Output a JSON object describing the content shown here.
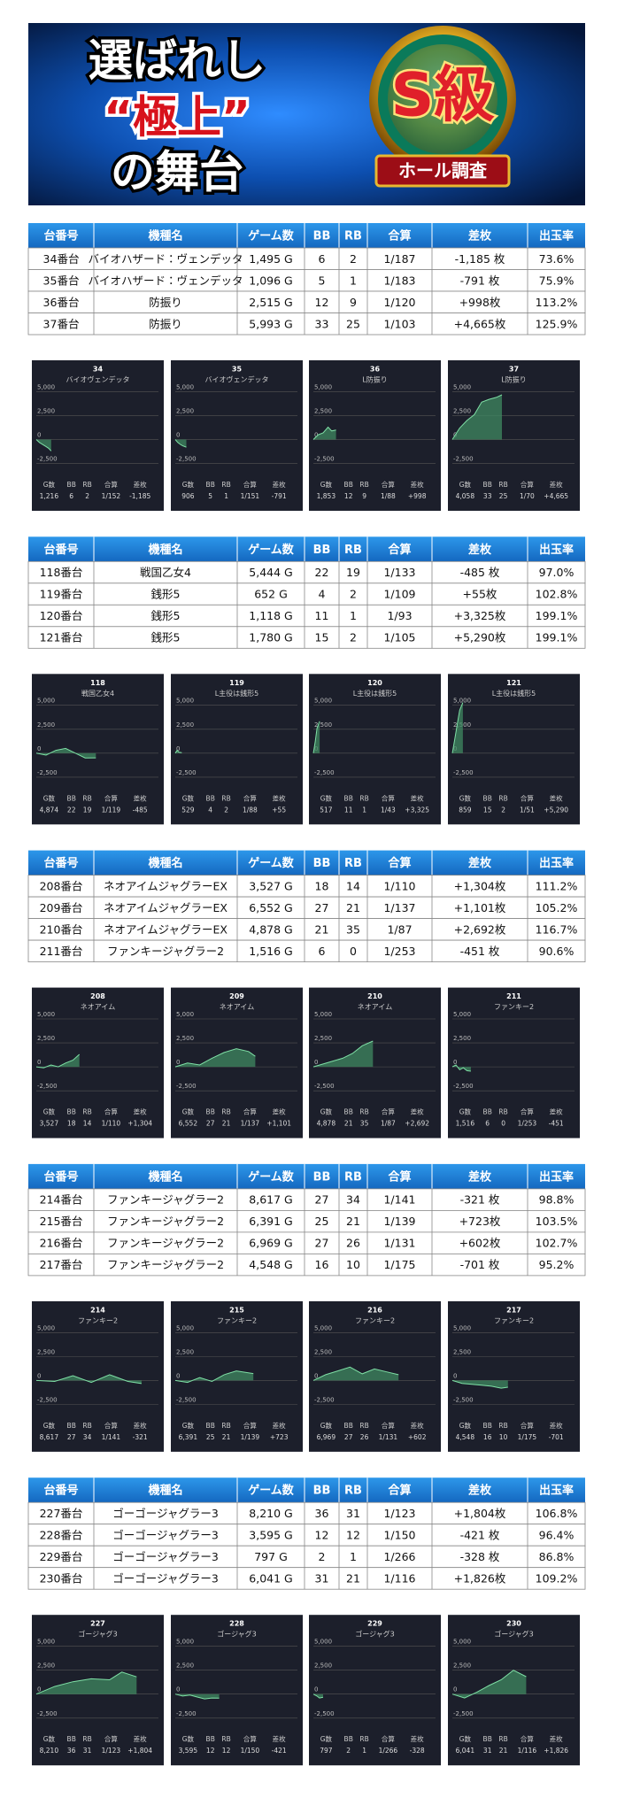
{
  "banner": {
    "line1": "選ばれし",
    "line2": "“極上”",
    "line3": "の舞台",
    "badge": "S級",
    "ribbon": "ホール調査"
  },
  "table_header": [
    "台番号",
    "機種名",
    "ゲーム数",
    "BB",
    "RB",
    "合算",
    "差枚",
    "出玉率"
  ],
  "chart_footer_header": [
    "G数",
    "BB",
    "RB",
    "合算",
    "差枚"
  ],
  "mini_chart": {
    "xlim": [
      0,
      10000
    ],
    "ylim": [
      -3000,
      5500
    ],
    "yticks": [
      {
        "value": 5000,
        "label": "5,000"
      },
      {
        "value": 2500,
        "label": "2,500"
      },
      0,
      {
        "value": -2500,
        "label": "-2,500"
      }
    ]
  },
  "groups": [
    {
      "table": {
        "rows": [
          [
            "34番台",
            "バイオハザード：ヴェンデッタ",
            "1,495 G",
            "6",
            "2",
            "1/187",
            "-1,185 枚",
            "73.6%"
          ],
          [
            "35番台",
            "バイオハザード：ヴェンデッタ",
            "1,096 G",
            "5",
            "1",
            "1/183",
            "-791 枚",
            "75.9%"
          ],
          [
            "36番台",
            "防振り",
            "2,515 G",
            "12",
            "9",
            "1/120",
            "+998枚",
            "113.2%"
          ],
          [
            "37番台",
            "防振り",
            "5,993 G",
            "33",
            "25",
            "1/103",
            "+4,665枚",
            "125.9%"
          ]
        ]
      },
      "charts": [
        {
          "number": "34",
          "name": "バイオヴェンデッタ",
          "footer": [
            "1,216",
            "6",
            "2",
            "1/152",
            "-1,185"
          ],
          "x": [
            0,
            250,
            500,
            750,
            1000,
            1216
          ],
          "values": [
            0,
            -300,
            -500,
            -700,
            -900,
            -1185
          ]
        },
        {
          "number": "35",
          "name": "バイオヴェンデッタ",
          "footer": [
            "906",
            "5",
            "1",
            "1/151",
            "-791"
          ],
          "x": [
            0,
            200,
            400,
            600,
            906
          ],
          "values": [
            0,
            -300,
            -500,
            -650,
            -791
          ]
        },
        {
          "number": "36",
          "name": "L防振り",
          "footer": [
            "1,853",
            "12",
            "9",
            "1/88",
            "+998"
          ],
          "x": [
            0,
            400,
            800,
            1200,
            1500,
            1853
          ],
          "values": [
            0,
            500,
            700,
            1300,
            900,
            998
          ]
        },
        {
          "number": "37",
          "name": "L防振り",
          "footer": [
            "4,058",
            "33",
            "25",
            "1/70",
            "+4,665"
          ],
          "x": [
            0,
            600,
            1200,
            1800,
            2400,
            3000,
            3600,
            4058
          ],
          "values": [
            0,
            1200,
            2000,
            2600,
            3900,
            4200,
            4400,
            4665
          ]
        }
      ]
    },
    {
      "table": {
        "rows": [
          [
            "118番台",
            "戦国乙女4",
            "5,444 G",
            "22",
            "19",
            "1/133",
            "-485 枚",
            "97.0%"
          ],
          [
            "119番台",
            "銭形5",
            "652 G",
            "4",
            "2",
            "1/109",
            "+55枚",
            "102.8%"
          ],
          [
            "120番台",
            "銭形5",
            "1,118 G",
            "11",
            "1",
            "1/93",
            "+3,325枚",
            "199.1%"
          ],
          [
            "121番台",
            "銭形5",
            "1,780 G",
            "15",
            "2",
            "1/105",
            "+5,290枚",
            "199.1%"
          ]
        ]
      },
      "charts": [
        {
          "number": "118",
          "name": "戦国乙女4",
          "footer": [
            "4,874",
            "22",
            "19",
            "1/119",
            "-485"
          ],
          "x": [
            0,
            800,
            1600,
            2400,
            3200,
            4000,
            4874
          ],
          "values": [
            0,
            -200,
            300,
            500,
            0,
            -500,
            -485
          ]
        },
        {
          "number": "119",
          "name": "L主役は銭形5",
          "footer": [
            "529",
            "4",
            "2",
            "1/88",
            "+55"
          ],
          "x": [
            0,
            150,
            300,
            529
          ],
          "values": [
            0,
            300,
            100,
            55
          ]
        },
        {
          "number": "120",
          "name": "L主役は銭形5",
          "footer": [
            "517",
            "11",
            "1",
            "1/43",
            "+3,325"
          ],
          "x": [
            0,
            150,
            300,
            517
          ],
          "values": [
            0,
            1200,
            2600,
            3325
          ]
        },
        {
          "number": "121",
          "name": "L主役は銭形5",
          "footer": [
            "859",
            "15",
            "2",
            "1/51",
            "+5,290"
          ],
          "x": [
            0,
            200,
            400,
            600,
            859
          ],
          "values": [
            0,
            1500,
            3000,
            4500,
            5290
          ]
        }
      ]
    },
    {
      "table": {
        "rows": [
          [
            "208番台",
            "ネオアイムジャグラーEX",
            "3,527 G",
            "18",
            "14",
            "1/110",
            "+1,304枚",
            "111.2%"
          ],
          [
            "209番台",
            "ネオアイムジャグラーEX",
            "6,552 G",
            "27",
            "21",
            "1/137",
            "+1,101枚",
            "105.2%"
          ],
          [
            "210番台",
            "ネオアイムジャグラーEX",
            "4,878 G",
            "21",
            "35",
            "1/87",
            "+2,692枚",
            "116.7%"
          ],
          [
            "211番台",
            "ファンキージャグラー2",
            "1,516 G",
            "6",
            "0",
            "1/253",
            "-451 枚",
            "90.6%"
          ]
        ]
      },
      "charts": [
        {
          "number": "208",
          "name": "ネオアイム",
          "footer": [
            "3,527",
            "18",
            "14",
            "1/110",
            "+1,304"
          ],
          "x": [
            0,
            600,
            1200,
            1800,
            2400,
            3000,
            3527
          ],
          "values": [
            0,
            -100,
            200,
            0,
            400,
            700,
            1304
          ]
        },
        {
          "number": "209",
          "name": "ネオアイム",
          "footer": [
            "6,552",
            "27",
            "21",
            "1/137",
            "+1,101"
          ],
          "x": [
            0,
            1000,
            2000,
            3000,
            4000,
            5000,
            6000,
            6552
          ],
          "values": [
            0,
            400,
            200,
            900,
            1500,
            1900,
            1600,
            1101
          ]
        },
        {
          "number": "210",
          "name": "ネオアイム",
          "footer": [
            "4,878",
            "21",
            "35",
            "1/87",
            "+2,692"
          ],
          "x": [
            0,
            800,
            1600,
            2400,
            3200,
            4000,
            4878
          ],
          "values": [
            0,
            300,
            600,
            900,
            1400,
            2200,
            2692
          ]
        },
        {
          "number": "211",
          "name": "ファンキー2",
          "footer": [
            "1,516",
            "6",
            "0",
            "1/253",
            "-451"
          ],
          "x": [
            0,
            300,
            600,
            900,
            1200,
            1516
          ],
          "values": [
            0,
            200,
            -300,
            -100,
            -400,
            -451
          ]
        }
      ]
    },
    {
      "table": {
        "rows": [
          [
            "214番台",
            "ファンキージャグラー2",
            "8,617 G",
            "27",
            "34",
            "1/141",
            "-321 枚",
            "98.8%"
          ],
          [
            "215番台",
            "ファンキージャグラー2",
            "6,391 G",
            "25",
            "21",
            "1/139",
            "+723枚",
            "103.5%"
          ],
          [
            "216番台",
            "ファンキージャグラー2",
            "6,969 G",
            "27",
            "26",
            "1/131",
            "+602枚",
            "102.7%"
          ],
          [
            "217番台",
            "ファンキージャグラー2",
            "4,548 G",
            "16",
            "10",
            "1/175",
            "-701 枚",
            "95.2%"
          ]
        ]
      },
      "charts": [
        {
          "number": "214",
          "name": "ファンキー2",
          "footer": [
            "8,617",
            "27",
            "34",
            "1/141",
            "-321"
          ],
          "x": [
            0,
            1500,
            3000,
            4500,
            6000,
            7500,
            8617
          ],
          "values": [
            0,
            -100,
            500,
            -200,
            600,
            -100,
            -321
          ]
        },
        {
          "number": "215",
          "name": "ファンキー2",
          "footer": [
            "6,391",
            "25",
            "21",
            "1/139",
            "+723"
          ],
          "x": [
            0,
            1000,
            2000,
            3000,
            4000,
            5000,
            6391
          ],
          "values": [
            0,
            -200,
            300,
            -100,
            600,
            1000,
            723
          ]
        },
        {
          "number": "216",
          "name": "ファンキー2",
          "footer": [
            "6,969",
            "27",
            "26",
            "1/131",
            "+602"
          ],
          "x": [
            0,
            1000,
            2000,
            3000,
            4000,
            5000,
            6000,
            6969
          ],
          "values": [
            0,
            600,
            1000,
            1400,
            700,
            1200,
            900,
            602
          ]
        },
        {
          "number": "217",
          "name": "ファンキー2",
          "footer": [
            "4,548",
            "16",
            "10",
            "1/175",
            "-701"
          ],
          "x": [
            0,
            800,
            1600,
            2400,
            3200,
            4000,
            4548
          ],
          "values": [
            0,
            -300,
            -400,
            -500,
            -600,
            -800,
            -701
          ]
        }
      ]
    },
    {
      "table": {
        "rows": [
          [
            "227番台",
            "ゴーゴージャグラー3",
            "8,210 G",
            "36",
            "31",
            "1/123",
            "+1,804枚",
            "106.8%"
          ],
          [
            "228番台",
            "ゴーゴージャグラー3",
            "3,595 G",
            "12",
            "12",
            "1/150",
            "-421 枚",
            "96.4%"
          ],
          [
            "229番台",
            "ゴーゴージャグラー3",
            "797 G",
            "2",
            "1",
            "1/266",
            "-328 枚",
            "86.8%"
          ],
          [
            "230番台",
            "ゴーゴージャグラー3",
            "6,041 G",
            "31",
            "21",
            "1/116",
            "+1,826枚",
            "109.2%"
          ]
        ]
      },
      "charts": [
        {
          "number": "227",
          "name": "ゴージャグ3",
          "footer": [
            "8,210",
            "36",
            "31",
            "1/123",
            "+1,804"
          ],
          "x": [
            0,
            1500,
            3000,
            4500,
            6000,
            7000,
            8210
          ],
          "values": [
            0,
            800,
            1300,
            1600,
            1500,
            2300,
            1804
          ]
        },
        {
          "number": "228",
          "name": "ゴージャグ3",
          "footer": [
            "3,595",
            "12",
            "12",
            "1/150",
            "-421"
          ],
          "x": [
            0,
            600,
            1200,
            1800,
            2400,
            3000,
            3595
          ],
          "values": [
            0,
            -200,
            -100,
            -300,
            -500,
            -400,
            -421
          ]
        },
        {
          "number": "229",
          "name": "ゴージャグ3",
          "footer": [
            "797",
            "2",
            "1",
            "1/266",
            "-328"
          ],
          "x": [
            0,
            300,
            500,
            797
          ],
          "values": [
            0,
            -200,
            -400,
            -328
          ]
        },
        {
          "number": "230",
          "name": "ゴージャグ3",
          "footer": [
            "6,041",
            "31",
            "21",
            "1/116",
            "+1,826"
          ],
          "x": [
            0,
            1000,
            2000,
            3000,
            4000,
            5000,
            6041
          ],
          "values": [
            0,
            -400,
            200,
            900,
            1500,
            2500,
            1826
          ]
        }
      ]
    }
  ]
}
